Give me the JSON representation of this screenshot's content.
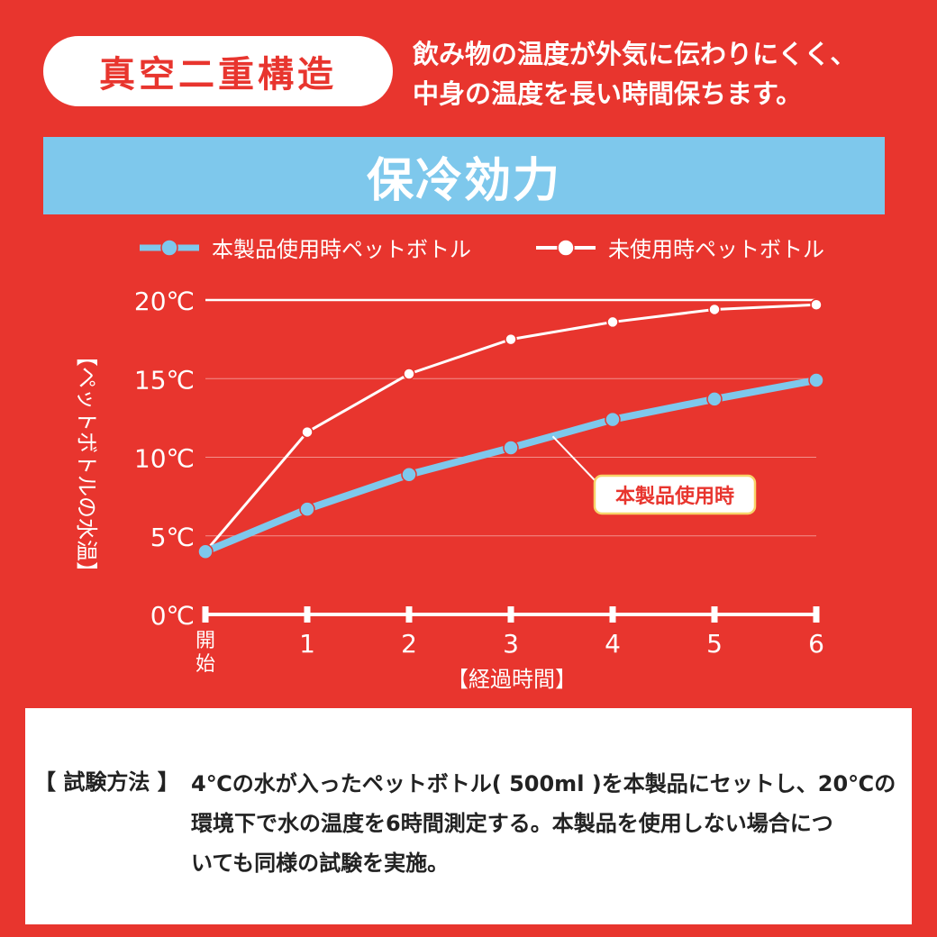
{
  "header": {
    "pill_label": "真空二重構造",
    "description_lines": [
      "飲み物の温度が外気に伝わりにくく、",
      "中身の温度を長い時間保ちます。"
    ]
  },
  "banner": {
    "title": "保冷効力"
  },
  "chart_data": {
    "type": "line",
    "categories": [
      "開始",
      "1",
      "2",
      "3",
      "4",
      "5",
      "6"
    ],
    "series": [
      {
        "name": "本製品使用時ペットボトル",
        "color": "#7ec8ec",
        "values": [
          4.0,
          6.7,
          8.9,
          10.6,
          12.4,
          13.7,
          14.9
        ]
      },
      {
        "name": "未使用時ペットボトル",
        "color": "#ffffff",
        "values": [
          4.0,
          11.6,
          15.3,
          17.5,
          18.6,
          19.4,
          19.7
        ]
      }
    ],
    "y_ticks": [
      "0℃",
      "5℃",
      "10℃",
      "15℃",
      "20℃"
    ],
    "ylim": [
      0,
      20
    ],
    "ylabel": "【ペットボトルの水温】",
    "xlabel": "【経過時間】",
    "annotation": "本製品使用時",
    "legend_position": "top"
  },
  "method": {
    "label": "【 試験方法 】",
    "lines": [
      "4℃の水が入ったペットボトル( 500ml )を本製品にセットし、20℃の",
      "環境下で水の温度を6時間測定する。本製品を使用しない場合につ",
      "いても同様の試験を実施。"
    ]
  }
}
